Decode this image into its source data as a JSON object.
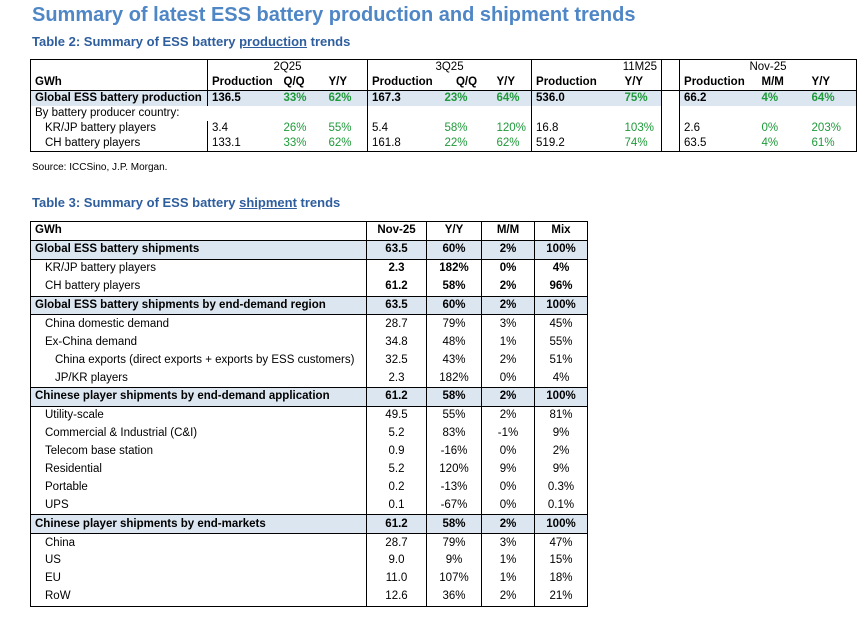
{
  "title": "Summary of latest ESS battery production and shipment trends",
  "table2": {
    "caption_pre": "Table 2: Summary of ESS battery ",
    "caption_ul": "production",
    "caption_post": " trends",
    "periods": [
      "2Q25",
      "3Q25",
      "11M25",
      "Nov-25"
    ],
    "unit": "GWh",
    "cols": {
      "q2": [
        "Production",
        "Q/Q",
        "Y/Y"
      ],
      "q3": [
        "Production",
        "Q/Q",
        "Y/Y"
      ],
      "m11": [
        "Production",
        "Y/Y"
      ],
      "nov": [
        "Production",
        "M/M",
        "Y/Y"
      ]
    },
    "rows": [
      {
        "label": "Global ESS battery production",
        "q2": [
          "136.5",
          "33%",
          "62%"
        ],
        "q3": [
          "167.3",
          "23%",
          "64%"
        ],
        "m11": [
          "536.0",
          "75%"
        ],
        "nov": [
          "66.2",
          "4%",
          "64%"
        ]
      },
      {
        "label": "By battery producer country:"
      },
      {
        "label": "KR/JP battery players",
        "q2": [
          "3.4",
          "26%",
          "55%"
        ],
        "q3": [
          "5.4",
          "58%",
          "120%"
        ],
        "m11": [
          "16.8",
          "103%"
        ],
        "nov": [
          "2.6",
          "0%",
          "203%"
        ]
      },
      {
        "label": "CH battery players",
        "q2": [
          "133.1",
          "33%",
          "62%"
        ],
        "q3": [
          "161.8",
          "22%",
          "62%"
        ],
        "m11": [
          "519.2",
          "74%"
        ],
        "nov": [
          "63.5",
          "4%",
          "61%"
        ]
      }
    ],
    "source": "Source: ICCSino, J.P. Morgan."
  },
  "table3": {
    "caption_pre": "Table 3: Summary of ESS battery ",
    "caption_ul": "shipment",
    "caption_post": " trends",
    "headers": [
      "GWh",
      "Nov-25",
      "Y/Y",
      "M/M",
      "Mix"
    ],
    "rows": [
      {
        "label": "Global ESS battery shipments",
        "v": [
          "63.5",
          "60%",
          "2%",
          "100%"
        ]
      },
      {
        "label": "KR/JP battery players",
        "v": [
          "2.3",
          "182%",
          "0%",
          "4%"
        ]
      },
      {
        "label": "CH battery players",
        "v": [
          "61.2",
          "58%",
          "2%",
          "96%"
        ]
      },
      {
        "label": "Global ESS battery shipments by end-demand region",
        "v": [
          "63.5",
          "60%",
          "2%",
          "100%"
        ]
      },
      {
        "label": "China domestic demand",
        "v": [
          "28.7",
          "79%",
          "3%",
          "45%"
        ]
      },
      {
        "label": "Ex-China demand",
        "v": [
          "34.8",
          "48%",
          "1%",
          "55%"
        ]
      },
      {
        "label": "China exports (direct exports + exports by ESS customers)",
        "v": [
          "32.5",
          "43%",
          "2%",
          "51%"
        ]
      },
      {
        "label": "JP/KR players",
        "v": [
          "2.3",
          "182%",
          "0%",
          "4%"
        ]
      },
      {
        "label": "Chinese player shipments by end-demand application",
        "v": [
          "61.2",
          "58%",
          "2%",
          "100%"
        ]
      },
      {
        "label": "Utility-scale",
        "v": [
          "49.5",
          "55%",
          "2%",
          "81%"
        ]
      },
      {
        "label": "Commercial & Industrial (C&I)",
        "v": [
          "5.2",
          "83%",
          "-1%",
          "9%"
        ]
      },
      {
        "label": "Telecom base station",
        "v": [
          "0.9",
          "-16%",
          "0%",
          "2%"
        ]
      },
      {
        "label": "Residential",
        "v": [
          "5.2",
          "120%",
          "9%",
          "9%"
        ]
      },
      {
        "label": "Portable",
        "v": [
          "0.2",
          "-13%",
          "0%",
          "0.3%"
        ]
      },
      {
        "label": "UPS",
        "v": [
          "0.1",
          "-67%",
          "0%",
          "0.1%"
        ]
      },
      {
        "label": "Chinese player shipments by end-markets",
        "v": [
          "61.2",
          "58%",
          "2%",
          "100%"
        ]
      },
      {
        "label": "China",
        "v": [
          "28.7",
          "79%",
          "3%",
          "47%"
        ]
      },
      {
        "label": "US",
        "v": [
          "9.0",
          "9%",
          "1%",
          "15%"
        ]
      },
      {
        "label": "EU",
        "v": [
          "11.0",
          "107%",
          "1%",
          "18%"
        ]
      },
      {
        "label": "RoW",
        "v": [
          "12.6",
          "36%",
          "2%",
          "21%"
        ]
      }
    ]
  }
}
